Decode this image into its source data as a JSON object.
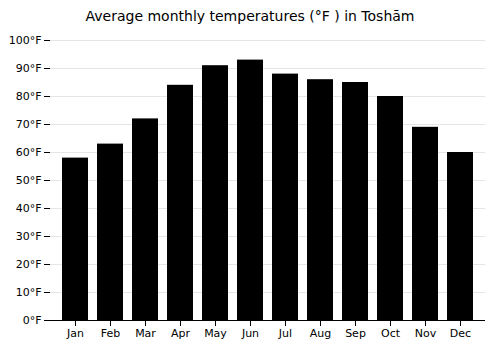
{
  "chart_data": {
    "type": "bar",
    "title": "Average monthly temperatures (°F ) in Toshām",
    "categories": [
      "Jan",
      "Feb",
      "Mar",
      "Apr",
      "May",
      "Jun",
      "Jul",
      "Aug",
      "Sep",
      "Oct",
      "Nov",
      "Dec"
    ],
    "values": [
      58,
      63,
      72,
      84,
      91,
      93,
      88,
      86,
      85,
      80,
      69,
      60
    ],
    "ylim": [
      0,
      100
    ],
    "yticks": [
      {
        "value": 0,
        "label": "0°F"
      },
      {
        "value": 10,
        "label": "10°F"
      },
      {
        "value": 20,
        "label": "20°F"
      },
      {
        "value": 30,
        "label": "30°F"
      },
      {
        "value": 40,
        "label": "40°F"
      },
      {
        "value": 50,
        "label": "50°F"
      },
      {
        "value": 60,
        "label": "60°F"
      },
      {
        "value": 70,
        "label": "70°F"
      },
      {
        "value": 80,
        "label": "80°F"
      },
      {
        "value": 90,
        "label": "90°F"
      },
      {
        "value": 100,
        "label": "100°F"
      }
    ],
    "grid": true
  }
}
